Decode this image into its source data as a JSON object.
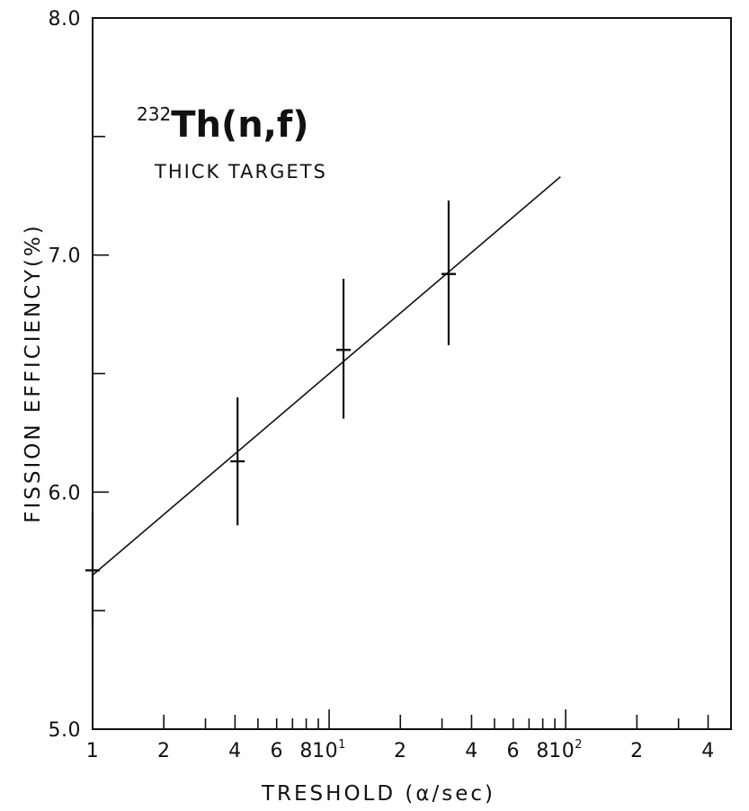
{
  "chart_data": {
    "type": "scatter",
    "title": {
      "superscript": "232",
      "main": "Th(n,f)"
    },
    "subtitle": "THICK TARGETS",
    "xlabel": "TRESHOLD (α/sec)",
    "ylabel": "FISSION EFFICIENCY(%)",
    "x_scale": "log",
    "xlim": [
      1,
      500
    ],
    "ylim": [
      5.0,
      8.0
    ],
    "x_tick_labels": [
      {
        "x": 1,
        "label": "1"
      },
      {
        "x": 2,
        "label": "2"
      },
      {
        "x": 4,
        "label": "4"
      },
      {
        "x": 6,
        "label": "6"
      },
      {
        "x": 8,
        "label": "8"
      },
      {
        "x": 10,
        "label": "10",
        "sup": "1"
      },
      {
        "x": 20,
        "label": "2"
      },
      {
        "x": 40,
        "label": "4"
      },
      {
        "x": 60,
        "label": "6"
      },
      {
        "x": 80,
        "label": "8"
      },
      {
        "x": 100,
        "label": "10",
        "sup": "2"
      },
      {
        "x": 200,
        "label": "2"
      },
      {
        "x": 400,
        "label": "4"
      }
    ],
    "y_tick_labels": [
      {
        "y": 5.0,
        "label": "5.0"
      },
      {
        "y": 6.0,
        "label": "6.0"
      },
      {
        "y": 7.0,
        "label": "7.0"
      },
      {
        "y": 8.0,
        "label": "8.0"
      }
    ],
    "series": [
      {
        "points": [
          {
            "x": 1,
            "y": 5.67,
            "yerr_low": 5.42,
            "yerr_high": 5.92
          },
          {
            "x": 4.1,
            "y": 6.13,
            "yerr_low": 5.86,
            "yerr_high": 6.4
          },
          {
            "x": 11.5,
            "y": 6.6,
            "yerr_low": 6.31,
            "yerr_high": 6.9
          },
          {
            "x": 32,
            "y": 6.92,
            "yerr_low": 6.62,
            "yerr_high": 7.23
          }
        ]
      }
    ],
    "fit_line": {
      "x_start": 1,
      "y_start": 5.65,
      "x_end": 95,
      "y_end": 7.33
    },
    "grid": false,
    "legend": "none"
  }
}
